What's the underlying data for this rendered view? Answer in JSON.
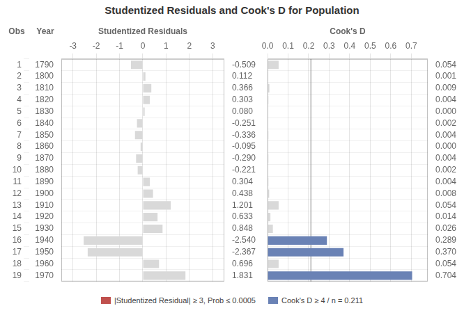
{
  "chart_data": [
    {
      "type": "bar",
      "orientation": "horizontal",
      "title": "Studentized Residuals and Cook's D for Population",
      "x_label": "Studentized Residuals",
      "categories": [
        1,
        2,
        3,
        4,
        5,
        6,
        7,
        8,
        9,
        10,
        11,
        12,
        13,
        14,
        15,
        16,
        17,
        18,
        19
      ],
      "categories_title": "Obs",
      "years": [
        1790,
        1800,
        1810,
        1820,
        1830,
        1840,
        1850,
        1860,
        1870,
        1880,
        1890,
        1900,
        1910,
        1920,
        1930,
        1940,
        1950,
        1960,
        1970
      ],
      "years_title": "Year",
      "values": [
        -0.509,
        0.112,
        0.366,
        0.303,
        0.08,
        -0.251,
        -0.336,
        -0.095,
        -0.29,
        -0.221,
        0.304,
        0.438,
        1.201,
        0.633,
        0.848,
        -2.54,
        -2.367,
        0.696,
        1.831
      ],
      "value_labels": [
        "-0.509",
        "0.112",
        "0.366",
        "0.303",
        "0.080",
        "-0.251",
        "-0.336",
        "-0.095",
        "-0.290",
        "-0.221",
        "0.304",
        "0.438",
        "1.201",
        "0.633",
        "0.848",
        "-2.540",
        "-2.367",
        "0.696",
        "1.831"
      ],
      "data_labels": true,
      "colors": [
        "#d9d9d9",
        "#d9d9d9",
        "#d9d9d9",
        "#d9d9d9",
        "#d9d9d9",
        "#d9d9d9",
        "#d9d9d9",
        "#d9d9d9",
        "#d9d9d9",
        "#d9d9d9",
        "#d9d9d9",
        "#d9d9d9",
        "#d9d9d9",
        "#d9d9d9",
        "#d9d9d9",
        "#d9d9d9",
        "#d9d9d9",
        "#d9d9d9",
        "#d9d9d9"
      ],
      "xlim": [
        -3.5,
        3.5
      ],
      "xticks": [
        -3,
        -2,
        -1,
        0,
        1,
        2,
        3
      ],
      "grid": true,
      "legend": "bottom",
      "legend_entries": [
        {
          "name": "|Studentized Residual| ≥ 3, Prob ≤ 0.0005",
          "color": "#c0504d"
        },
        {
          "name": "Cook's D ≥ 4 / n = 0.211",
          "color": "#6a82b5"
        }
      ]
    },
    {
      "type": "bar",
      "orientation": "horizontal",
      "x_label": "Cook's D",
      "categories": [
        1,
        2,
        3,
        4,
        5,
        6,
        7,
        8,
        9,
        10,
        11,
        12,
        13,
        14,
        15,
        16,
        17,
        18,
        19
      ],
      "values": [
        0.054,
        0.001,
        0.009,
        0.004,
        0.0,
        0.002,
        0.004,
        0.0,
        0.004,
        0.002,
        0.004,
        0.008,
        0.054,
        0.014,
        0.026,
        0.289,
        0.37,
        0.054,
        0.704
      ],
      "value_labels": [
        "0.054",
        "0.001",
        "0.009",
        "0.004",
        "0.000",
        "0.002",
        "0.004",
        "0.000",
        "0.004",
        "0.002",
        "0.004",
        "0.008",
        "0.054",
        "0.014",
        "0.026",
        "0.289",
        "0.370",
        "0.054",
        "0.704"
      ],
      "data_labels": true,
      "colors": [
        "#d9d9d9",
        "#d9d9d9",
        "#d9d9d9",
        "#d9d9d9",
        "#d9d9d9",
        "#d9d9d9",
        "#d9d9d9",
        "#d9d9d9",
        "#d9d9d9",
        "#d9d9d9",
        "#d9d9d9",
        "#d9d9d9",
        "#d9d9d9",
        "#d9d9d9",
        "#d9d9d9",
        "#6a82b5",
        "#6a82b5",
        "#d9d9d9",
        "#6a82b5"
      ],
      "xlim": [
        0.0,
        0.78
      ],
      "xticks": [
        {
          "value": 0.0,
          "label": "0.0"
        },
        0.1,
        0.2,
        0.3,
        0.4,
        0.5,
        0.6,
        0.7
      ],
      "threshold": 0.211,
      "grid": true
    }
  ]
}
